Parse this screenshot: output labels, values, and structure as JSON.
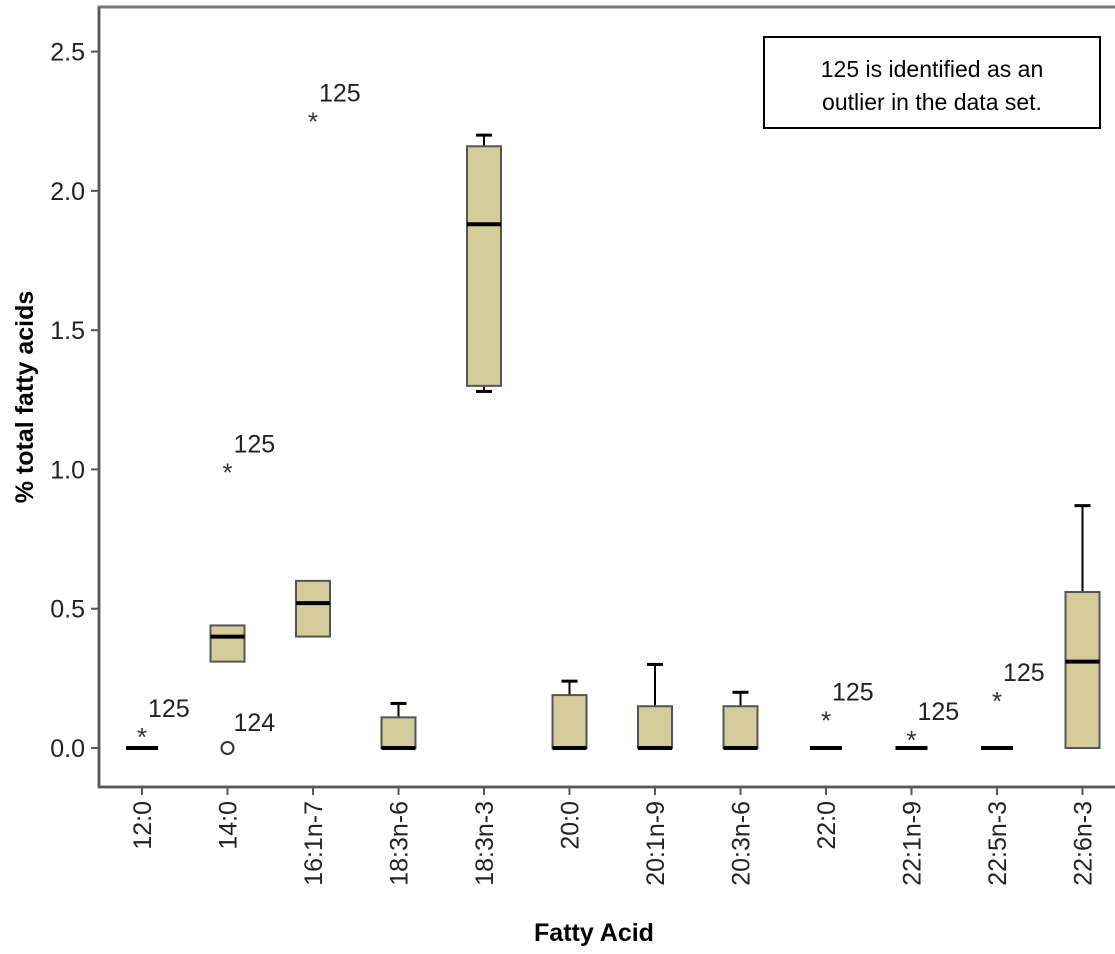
{
  "chart_data": {
    "type": "box",
    "xlabel": "Fatty Acid",
    "ylabel": "% total fatty acids",
    "ylim": [
      -0.14,
      2.66
    ],
    "yticks": [
      0.0,
      0.5,
      1.0,
      1.5,
      2.0,
      2.5
    ],
    "ytick_labels": [
      "0.0",
      "0.5",
      "1.0",
      "1.5",
      "2.0",
      "2.5"
    ],
    "grid": false,
    "box_color": "#d4cc9a",
    "note": "125 is identified as an outlier in the data set.",
    "note_lines": [
      "125 is identified as an",
      "outlier in the data set."
    ],
    "categories": [
      "12:0",
      "14:0",
      "16:1n-7",
      "18:3n-6",
      "18:3n-3",
      "20:0",
      "20:1n-9",
      "20:3n-6",
      "22:0",
      "22:1n-9",
      "22:5n-3",
      "22:6n-3"
    ],
    "boxes": [
      {
        "category": "12:0",
        "min": 0.0,
        "q1": 0.0,
        "median": 0.0,
        "q3": 0.0,
        "max": 0.0
      },
      {
        "category": "14:0",
        "min": 0.31,
        "q1": 0.31,
        "median": 0.4,
        "q3": 0.44,
        "max": 0.44
      },
      {
        "category": "16:1n-7",
        "min": 0.4,
        "q1": 0.4,
        "median": 0.52,
        "q3": 0.6,
        "max": 0.6
      },
      {
        "category": "18:3n-6",
        "min": 0.0,
        "q1": 0.0,
        "median": 0.0,
        "q3": 0.11,
        "max": 0.16
      },
      {
        "category": "18:3n-3",
        "min": 1.28,
        "q1": 1.3,
        "median": 1.88,
        "q3": 2.16,
        "max": 2.2
      },
      {
        "category": "20:0",
        "min": 0.0,
        "q1": 0.0,
        "median": 0.0,
        "q3": 0.19,
        "max": 0.24
      },
      {
        "category": "20:1n-9",
        "min": 0.0,
        "q1": 0.0,
        "median": 0.0,
        "q3": 0.15,
        "max": 0.3
      },
      {
        "category": "20:3n-6",
        "min": 0.0,
        "q1": 0.0,
        "median": 0.0,
        "q3": 0.15,
        "max": 0.2
      },
      {
        "category": "22:0",
        "min": 0.0,
        "q1": 0.0,
        "median": 0.0,
        "q3": 0.0,
        "max": 0.0
      },
      {
        "category": "22:1n-9",
        "min": 0.0,
        "q1": 0.0,
        "median": 0.0,
        "q3": 0.0,
        "max": 0.0
      },
      {
        "category": "22:5n-3",
        "min": 0.0,
        "q1": 0.0,
        "median": 0.0,
        "q3": 0.0,
        "max": 0.0
      },
      {
        "category": "22:6n-3",
        "min": 0.0,
        "q1": 0.0,
        "median": 0.31,
        "q3": 0.56,
        "max": 0.87
      }
    ],
    "outliers": [
      {
        "category": "12:0",
        "value": 0.05,
        "marker": "star",
        "label": "125"
      },
      {
        "category": "14:0",
        "value": 1.0,
        "marker": "star",
        "label": "125"
      },
      {
        "category": "14:0",
        "value": 0.0,
        "marker": "circle",
        "label": "124"
      },
      {
        "category": "16:1n-7",
        "value": 2.26,
        "marker": "star",
        "label": "125"
      },
      {
        "category": "22:0",
        "value": 0.11,
        "marker": "star",
        "label": "125"
      },
      {
        "category": "22:1n-9",
        "value": 0.04,
        "marker": "star",
        "label": "125"
      },
      {
        "category": "22:5n-3",
        "value": 0.18,
        "marker": "star",
        "label": "125"
      }
    ]
  }
}
